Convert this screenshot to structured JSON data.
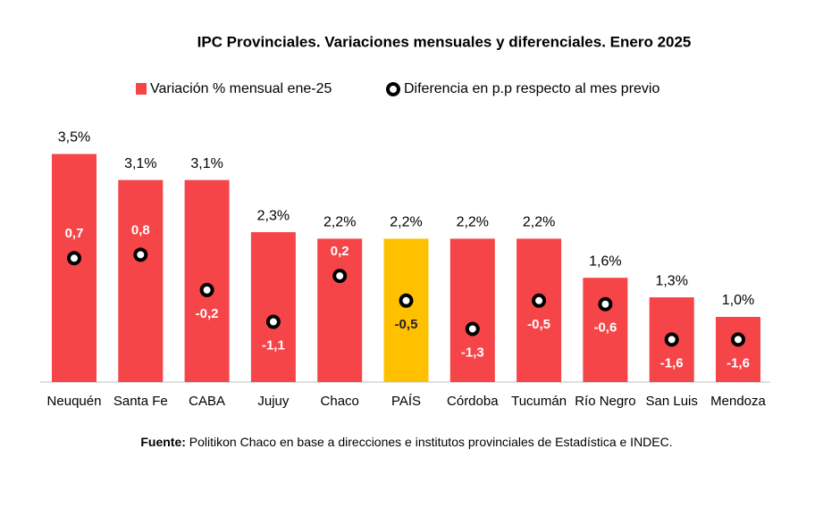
{
  "chart_data": {
    "type": "bar",
    "title": "IPC Provinciales. Variaciones mensuales y diferenciales. Enero 2025",
    "categories": [
      "Neuquén",
      "Santa Fe",
      "CABA",
      "Jujuy",
      "Chaco",
      "PAÍS",
      "Córdoba",
      "Tucumán",
      "Río Negro",
      "San Luis",
      "Mendoza"
    ],
    "series": [
      {
        "name": "Variación % mensual ene-25",
        "color": "#f64548",
        "colors": [
          "#f64548",
          "#f64548",
          "#f64548",
          "#f64548",
          "#f64548",
          "#ffc000",
          "#f64548",
          "#f64548",
          "#f64548",
          "#f64548",
          "#f64548"
        ],
        "values": [
          3.5,
          3.1,
          3.1,
          2.3,
          2.2,
          2.2,
          2.2,
          2.2,
          1.6,
          1.3,
          1.0
        ],
        "value_labels": [
          "3,5%",
          "3,1%",
          "3,1%",
          "2,3%",
          "2,2%",
          "2,2%",
          "2,2%",
          "2,2%",
          "1,6%",
          "1,3%",
          "1,0%"
        ]
      },
      {
        "name": "Diferencia en p.p respecto al mes previo",
        "type": "scatter",
        "axis": "y2",
        "color": "#000000",
        "values": [
          0.7,
          0.8,
          -0.2,
          -1.1,
          0.2,
          -0.5,
          -1.3,
          -0.5,
          -0.6,
          -1.6,
          -1.6
        ],
        "value_labels": [
          "0,7",
          "0,8",
          "-0,2",
          "-1,1",
          "0,2",
          "-0,5",
          "-1,3",
          "-0,5",
          "-0,6",
          "-1,6",
          "-1,6"
        ]
      }
    ],
    "source_label": "Fuente:",
    "source": "Politikon Chaco en base a direcciones e institutos provinciales de Estadística e INDEC."
  }
}
